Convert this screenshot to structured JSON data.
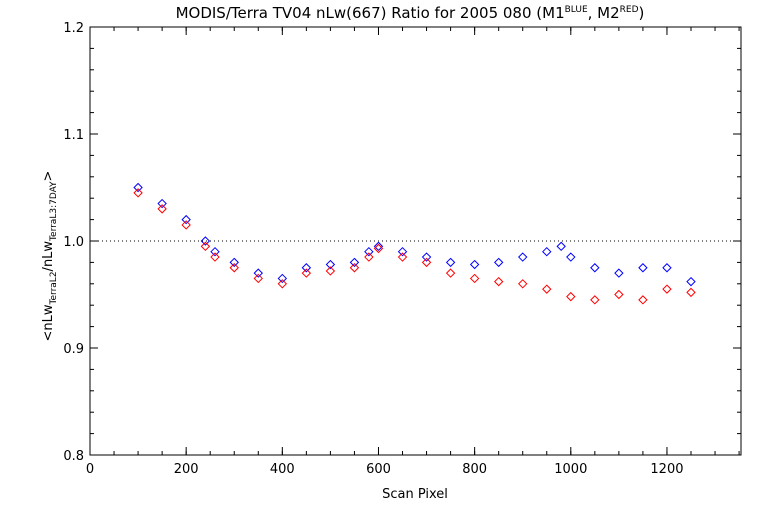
{
  "chart_data": {
    "type": "scatter",
    "title": {
      "main": "MODIS/Terra TV04 nLw(667) Ratio for 2005 080 (M1",
      "sup1": "BLUE",
      "mid": ", M2",
      "sup2": "RED",
      "end": ")"
    },
    "xlabel": "Scan Pixel",
    "ylabel": {
      "p1": "<nLw",
      "s1": "TerraL2",
      "p2": "/nLw",
      "s2": "TerraL3:7DAY",
      "p3": ">"
    },
    "xlim": [
      0,
      1354
    ],
    "ylim": [
      0.8,
      1.2
    ],
    "x_ticks": [
      0,
      200,
      400,
      600,
      800,
      1000,
      1200
    ],
    "y_ticks": [
      0.8,
      0.9,
      1.0,
      1.1,
      1.2
    ],
    "x_tick_labels": [
      "0",
      "200",
      "400",
      "600",
      "800",
      "1000",
      "1200"
    ],
    "y_tick_labels": [
      "0.8",
      "0.9",
      "1.0",
      "1.1",
      "1.2"
    ],
    "reference_line": {
      "y": 1.0,
      "style": "dotted"
    },
    "series": [
      {
        "color": "#0000ff",
        "marker": "diamond",
        "x": [
          100,
          150,
          200,
          240,
          260,
          300,
          350,
          400,
          450,
          500,
          550,
          580,
          600,
          650,
          700,
          750,
          800,
          850,
          900,
          950,
          980,
          1000,
          1050,
          1100,
          1150,
          1200,
          1250
        ],
        "y": [
          1.05,
          1.035,
          1.02,
          1.0,
          0.99,
          0.98,
          0.97,
          0.965,
          0.975,
          0.978,
          0.98,
          0.99,
          0.995,
          0.99,
          0.985,
          0.98,
          0.978,
          0.98,
          0.985,
          0.99,
          0.995,
          0.985,
          0.975,
          0.97,
          0.975,
          0.975,
          0.962
        ]
      },
      {
        "color": "#ff0000",
        "marker": "diamond",
        "x": [
          100,
          150,
          200,
          240,
          260,
          300,
          350,
          400,
          450,
          500,
          550,
          580,
          600,
          650,
          700,
          750,
          800,
          850,
          900,
          950,
          1000,
          1050,
          1100,
          1150,
          1200,
          1250
        ],
        "y": [
          1.045,
          1.03,
          1.015,
          0.995,
          0.985,
          0.975,
          0.965,
          0.96,
          0.97,
          0.972,
          0.975,
          0.985,
          0.993,
          0.985,
          0.98,
          0.97,
          0.965,
          0.962,
          0.96,
          0.955,
          0.948,
          0.945,
          0.95,
          0.945,
          0.955,
          0.952
        ]
      }
    ],
    "grid": false,
    "legend": "none"
  }
}
